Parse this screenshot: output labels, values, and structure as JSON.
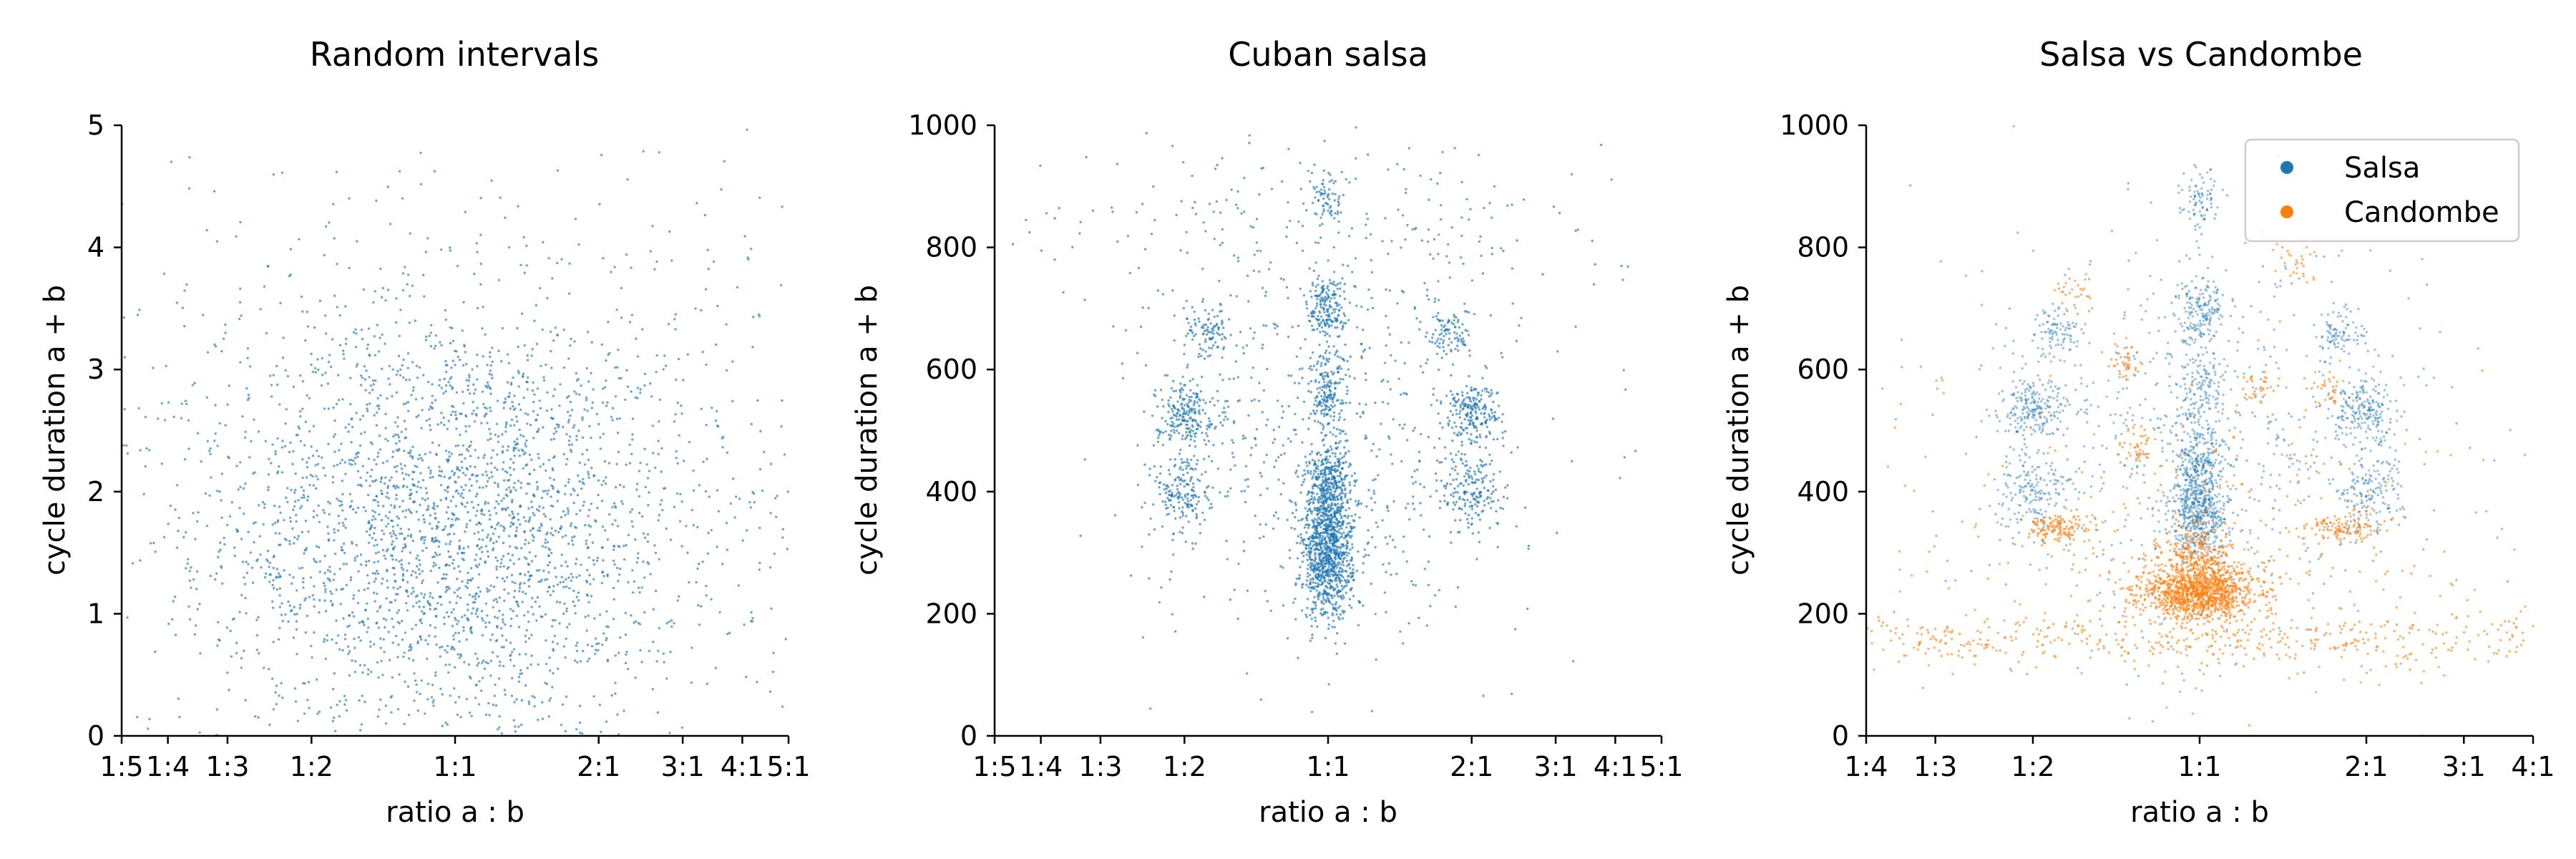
{
  "chart_data": [
    {
      "type": "scatter",
      "title": "Random intervals",
      "xlabel": "ratio a : b",
      "ylabel": "cycle duration a + b",
      "x_scale": "log-ratio",
      "xlim": [
        "1:5",
        "5:1"
      ],
      "xticks": [
        "1:5",
        "1:4",
        "1:3",
        "1:2",
        "1:1",
        "2:1",
        "3:1",
        "4:1",
        "5:1"
      ],
      "ylim": [
        0,
        5
      ],
      "yticks": [
        "0",
        "1",
        "2",
        "3",
        "4",
        "5"
      ],
      "grid": false,
      "series": [
        {
          "color": "#1f77b4",
          "clusters": [
            {
              "ratio": 1.0,
              "y": 1.7,
              "sx": 0.55,
              "sy": 0.9,
              "w": 0.65
            },
            {
              "ratio": 1.0,
              "y": 2.0,
              "sx": 1.6,
              "sy": 1.3,
              "w": 0.35
            }
          ]
        }
      ]
    },
    {
      "type": "scatter",
      "title": "Cuban salsa",
      "xlabel": "ratio a : b",
      "ylabel": "cycle duration a + b",
      "x_scale": "log-ratio",
      "xlim": [
        "1:5",
        "5:1"
      ],
      "xticks": [
        "1:5",
        "1:4",
        "1:3",
        "1:2",
        "1:1",
        "2:1",
        "3:1",
        "4:1",
        "5:1"
      ],
      "ylim": [
        0,
        1000
      ],
      "yticks": [
        "0",
        "200",
        "400",
        "600",
        "800",
        "1000"
      ],
      "grid": false,
      "series": [
        {
          "color": "#1f77b4",
          "clusters": [
            {
              "ratio": 1.0,
              "y": 280,
              "sx": 0.06,
              "sy": 45,
              "w": 0.2
            },
            {
              "ratio": 1.0,
              "y": 370,
              "sx": 0.06,
              "sy": 40,
              "w": 0.12
            },
            {
              "ratio": 1.0,
              "y": 430,
              "sx": 0.05,
              "sy": 25,
              "w": 0.05
            },
            {
              "ratio": 0.5,
              "y": 400,
              "sx": 0.07,
              "sy": 35,
              "w": 0.05
            },
            {
              "ratio": 2.0,
              "y": 400,
              "sx": 0.07,
              "sy": 35,
              "w": 0.05
            },
            {
              "ratio": 0.5,
              "y": 530,
              "sx": 0.07,
              "sy": 25,
              "w": 0.06
            },
            {
              "ratio": 2.0,
              "y": 530,
              "sx": 0.07,
              "sy": 25,
              "w": 0.06
            },
            {
              "ratio": 1.0,
              "y": 560,
              "sx": 0.05,
              "sy": 35,
              "w": 0.05
            },
            {
              "ratio": 0.56,
              "y": 660,
              "sx": 0.05,
              "sy": 20,
              "w": 0.025
            },
            {
              "ratio": 1.8,
              "y": 660,
              "sx": 0.05,
              "sy": 20,
              "w": 0.025
            },
            {
              "ratio": 1.0,
              "y": 700,
              "sx": 0.05,
              "sy": 28,
              "w": 0.05
            },
            {
              "ratio": 1.0,
              "y": 880,
              "sx": 0.04,
              "sy": 25,
              "w": 0.02
            },
            {
              "ratio": 1.0,
              "y": 480,
              "sx": 0.45,
              "sy": 170,
              "w": 0.19
            },
            {
              "ratio": 1.0,
              "y": 850,
              "sx": 0.75,
              "sy": 80,
              "w": 0.06
            }
          ]
        }
      ]
    },
    {
      "type": "scatter",
      "title": "Salsa vs Candombe",
      "xlabel": "ratio a : b",
      "ylabel": "cycle duration a + b",
      "x_scale": "log-ratio",
      "xlim": [
        "1:4",
        "4:1"
      ],
      "xticks": [
        "1:4",
        "1:3",
        "1:2",
        "1:1",
        "2:1",
        "3:1",
        "4:1"
      ],
      "ylim": [
        0,
        1000
      ],
      "yticks": [
        "0",
        "200",
        "400",
        "600",
        "800",
        "1000"
      ],
      "grid": false,
      "legend": "top-right",
      "series": [
        {
          "name": "Salsa",
          "color": "#1f77b4",
          "clusters": [
            {
              "ratio": 1.0,
              "y": 370,
              "sx": 0.06,
              "sy": 40,
              "w": 0.2
            },
            {
              "ratio": 1.0,
              "y": 450,
              "sx": 0.05,
              "sy": 25,
              "w": 0.06
            },
            {
              "ratio": 0.5,
              "y": 400,
              "sx": 0.08,
              "sy": 35,
              "w": 0.06
            },
            {
              "ratio": 2.0,
              "y": 400,
              "sx": 0.08,
              "sy": 35,
              "w": 0.06
            },
            {
              "ratio": 0.5,
              "y": 530,
              "sx": 0.07,
              "sy": 25,
              "w": 0.07
            },
            {
              "ratio": 2.0,
              "y": 530,
              "sx": 0.07,
              "sy": 25,
              "w": 0.07
            },
            {
              "ratio": 1.0,
              "y": 560,
              "sx": 0.05,
              "sy": 35,
              "w": 0.05
            },
            {
              "ratio": 1.0,
              "y": 700,
              "sx": 0.05,
              "sy": 28,
              "w": 0.06
            },
            {
              "ratio": 0.56,
              "y": 660,
              "sx": 0.05,
              "sy": 20,
              "w": 0.03
            },
            {
              "ratio": 1.8,
              "y": 660,
              "sx": 0.05,
              "sy": 20,
              "w": 0.03
            },
            {
              "ratio": 1.0,
              "y": 880,
              "sx": 0.04,
              "sy": 25,
              "w": 0.03
            },
            {
              "ratio": 1.0,
              "y": 500,
              "sx": 0.5,
              "sy": 170,
              "w": 0.25
            }
          ]
        },
        {
          "name": "Candombe",
          "color": "#ff7f0e",
          "clusters": [
            {
              "ratio": 1.0,
              "y": 235,
              "sx": 0.12,
              "sy": 22,
              "w": 0.4
            },
            {
              "ratio": 1.0,
              "y": 290,
              "sx": 0.08,
              "sy": 28,
              "w": 0.1
            },
            {
              "ratio": 0.55,
              "y": 340,
              "sx": 0.07,
              "sy": 12,
              "w": 0.05
            },
            {
              "ratio": 1.8,
              "y": 340,
              "sx": 0.08,
              "sy": 12,
              "w": 0.04
            },
            {
              "ratio": 0.78,
              "y": 480,
              "sx": 0.04,
              "sy": 15,
              "w": 0.015
            },
            {
              "ratio": 0.74,
              "y": 610,
              "sx": 0.04,
              "sy": 15,
              "w": 0.015
            },
            {
              "ratio": 1.27,
              "y": 570,
              "sx": 0.04,
              "sy": 15,
              "w": 0.012
            },
            {
              "ratio": 1.7,
              "y": 570,
              "sx": 0.04,
              "sy": 15,
              "w": 0.012
            },
            {
              "ratio": 0.6,
              "y": 730,
              "sx": 0.04,
              "sy": 15,
              "w": 0.01
            },
            {
              "ratio": 1.5,
              "y": 780,
              "sx": 0.04,
              "sy": 15,
              "w": 0.01
            },
            {
              "ratio": 1.0,
              "y": 155,
              "sx": 1.2,
              "sy": 22,
              "w": 0.2
            },
            {
              "ratio": 1.0,
              "y": 300,
              "sx": 0.7,
              "sy": 150,
              "w": 0.14
            }
          ]
        }
      ]
    }
  ]
}
